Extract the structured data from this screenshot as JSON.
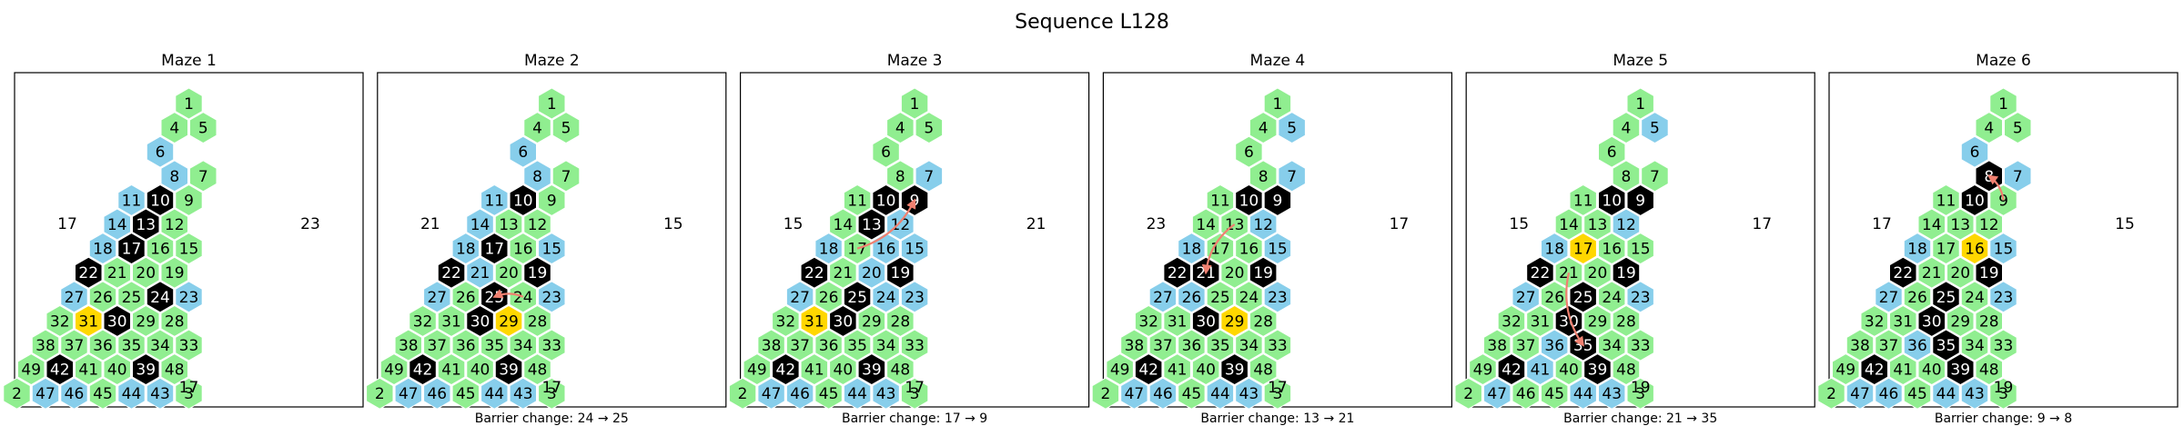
{
  "title": "Sequence L128",
  "colors": {
    "green": "#90ee90",
    "blue": "#87ceeb",
    "black": "#000000",
    "yellow": "#ffd700",
    "arrow": "#f08070"
  },
  "cells": [
    {
      "n": "1",
      "row": 0,
      "col": 0
    },
    {
      "n": "4",
      "row": 1,
      "col": 0
    },
    {
      "n": "5",
      "row": 1,
      "col": 1
    },
    {
      "n": "6",
      "row": 2,
      "col": 0
    },
    {
      "n": "8",
      "row": 3,
      "col": 1
    },
    {
      "n": "7",
      "row": 3,
      "col": 2
    },
    {
      "n": "11",
      "row": 4,
      "col": 0
    },
    {
      "n": "10",
      "row": 4,
      "col": 1
    },
    {
      "n": "9",
      "row": 4,
      "col": 2
    },
    {
      "n": "14",
      "row": 5,
      "col": 0
    },
    {
      "n": "13",
      "row": 5,
      "col": 1
    },
    {
      "n": "12",
      "row": 5,
      "col": 2
    },
    {
      "n": "18",
      "row": 6,
      "col": 0
    },
    {
      "n": "17",
      "row": 6,
      "col": 1
    },
    {
      "n": "16",
      "row": 6,
      "col": 2
    },
    {
      "n": "15",
      "row": 6,
      "col": 3
    },
    {
      "n": "22",
      "row": 7,
      "col": 0
    },
    {
      "n": "21",
      "row": 7,
      "col": 1
    },
    {
      "n": "20",
      "row": 7,
      "col": 2
    },
    {
      "n": "19",
      "row": 7,
      "col": 3
    },
    {
      "n": "27",
      "row": 8,
      "col": 0
    },
    {
      "n": "26",
      "row": 8,
      "col": 1
    },
    {
      "n": "25",
      "row": 8,
      "col": 2
    },
    {
      "n": "24",
      "row": 8,
      "col": 3
    },
    {
      "n": "23",
      "row": 8,
      "col": 4
    },
    {
      "n": "32",
      "row": 9,
      "col": 0
    },
    {
      "n": "31",
      "row": 9,
      "col": 1
    },
    {
      "n": "30",
      "row": 9,
      "col": 2
    },
    {
      "n": "29",
      "row": 9,
      "col": 3
    },
    {
      "n": "28",
      "row": 9,
      "col": 4
    },
    {
      "n": "38",
      "row": 10,
      "col": 0
    },
    {
      "n": "37",
      "row": 10,
      "col": 1
    },
    {
      "n": "36",
      "row": 10,
      "col": 2
    },
    {
      "n": "35",
      "row": 10,
      "col": 3
    },
    {
      "n": "34",
      "row": 10,
      "col": 4
    },
    {
      "n": "33",
      "row": 10,
      "col": 5
    },
    {
      "n": "49",
      "row": 11,
      "col": 0
    },
    {
      "n": "42",
      "row": 11,
      "col": 1
    },
    {
      "n": "41",
      "row": 11,
      "col": 2
    },
    {
      "n": "40",
      "row": 11,
      "col": 3
    },
    {
      "n": "39",
      "row": 11,
      "col": 4
    },
    {
      "n": "48",
      "row": 11,
      "col": 5
    },
    {
      "n": "2",
      "row": 12,
      "col": 0
    },
    {
      "n": "47",
      "row": 12,
      "col": 1
    },
    {
      "n": "46",
      "row": 12,
      "col": 2
    },
    {
      "n": "45",
      "row": 12,
      "col": 3
    },
    {
      "n": "44",
      "row": 12,
      "col": 4
    },
    {
      "n": "43",
      "row": 12,
      "col": 5
    },
    {
      "n": "3",
      "row": 12,
      "col": 6
    }
  ],
  "mazes": [
    {
      "title": "Maze 1",
      "left": "17",
      "right": "23",
      "bottom": "17",
      "caption": "",
      "blue": [
        "6",
        "8",
        "11",
        "14",
        "18",
        "27",
        "47",
        "46",
        "44",
        "43",
        "23"
      ],
      "black": [
        "10",
        "13",
        "17",
        "22",
        "24",
        "30",
        "42",
        "39"
      ],
      "yellow": [
        "31"
      ],
      "arrow": []
    },
    {
      "title": "Maze 2",
      "left": "21",
      "right": "15",
      "bottom": "17",
      "caption": "Barrier change: 24 → 25",
      "blue": [
        "6",
        "8",
        "11",
        "14",
        "18",
        "27",
        "21",
        "15",
        "47",
        "46",
        "44",
        "43",
        "23"
      ],
      "black": [
        "10",
        "17",
        "22",
        "25",
        "19",
        "30",
        "42",
        "39"
      ],
      "yellow": [
        "29"
      ],
      "arrow": [
        "24",
        "25"
      ]
    },
    {
      "title": "Maze 3",
      "left": "15",
      "right": "21",
      "bottom": "17",
      "caption": "Barrier change: 17 → 9",
      "blue": [
        "7",
        "12",
        "16",
        "18",
        "15",
        "27",
        "20",
        "24",
        "47",
        "46",
        "44",
        "43",
        "23"
      ],
      "black": [
        "10",
        "9",
        "13",
        "22",
        "25",
        "19",
        "30",
        "42",
        "39"
      ],
      "yellow": [
        "31"
      ],
      "arrow": [
        "17",
        "9"
      ]
    },
    {
      "title": "Maze 4",
      "left": "23",
      "right": "17",
      "bottom": "17",
      "caption": "Barrier change: 13 → 21",
      "blue": [
        "5",
        "7",
        "12",
        "18",
        "26",
        "15",
        "27",
        "47",
        "46",
        "44",
        "43",
        "23"
      ],
      "black": [
        "10",
        "9",
        "22",
        "21",
        "19",
        "30",
        "42",
        "39"
      ],
      "yellow": [
        "29"
      ],
      "arrow": [
        "13",
        "21"
      ]
    },
    {
      "title": "Maze 5",
      "left": "15",
      "right": "17",
      "bottom": "19",
      "caption": "Barrier change: 21 → 35",
      "blue": [
        "5",
        "12",
        "18",
        "27",
        "36",
        "23",
        "47",
        "41",
        "44",
        "43"
      ],
      "black": [
        "10",
        "9",
        "22",
        "25",
        "19",
        "30",
        "35",
        "42",
        "39"
      ],
      "yellow": [
        "17"
      ],
      "arrow": [
        "21",
        "35"
      ]
    },
    {
      "title": "Maze 6",
      "left": "17",
      "right": "15",
      "bottom": "19",
      "caption": "Barrier change: 9 → 8",
      "blue": [
        "6",
        "7",
        "18",
        "15",
        "27",
        "36",
        "47",
        "46",
        "44",
        "43",
        "23"
      ],
      "black": [
        "8",
        "10",
        "22",
        "25",
        "19",
        "30",
        "35",
        "42",
        "39"
      ],
      "yellow": [
        "16"
      ],
      "arrow": [
        "9",
        "8"
      ]
    }
  ]
}
